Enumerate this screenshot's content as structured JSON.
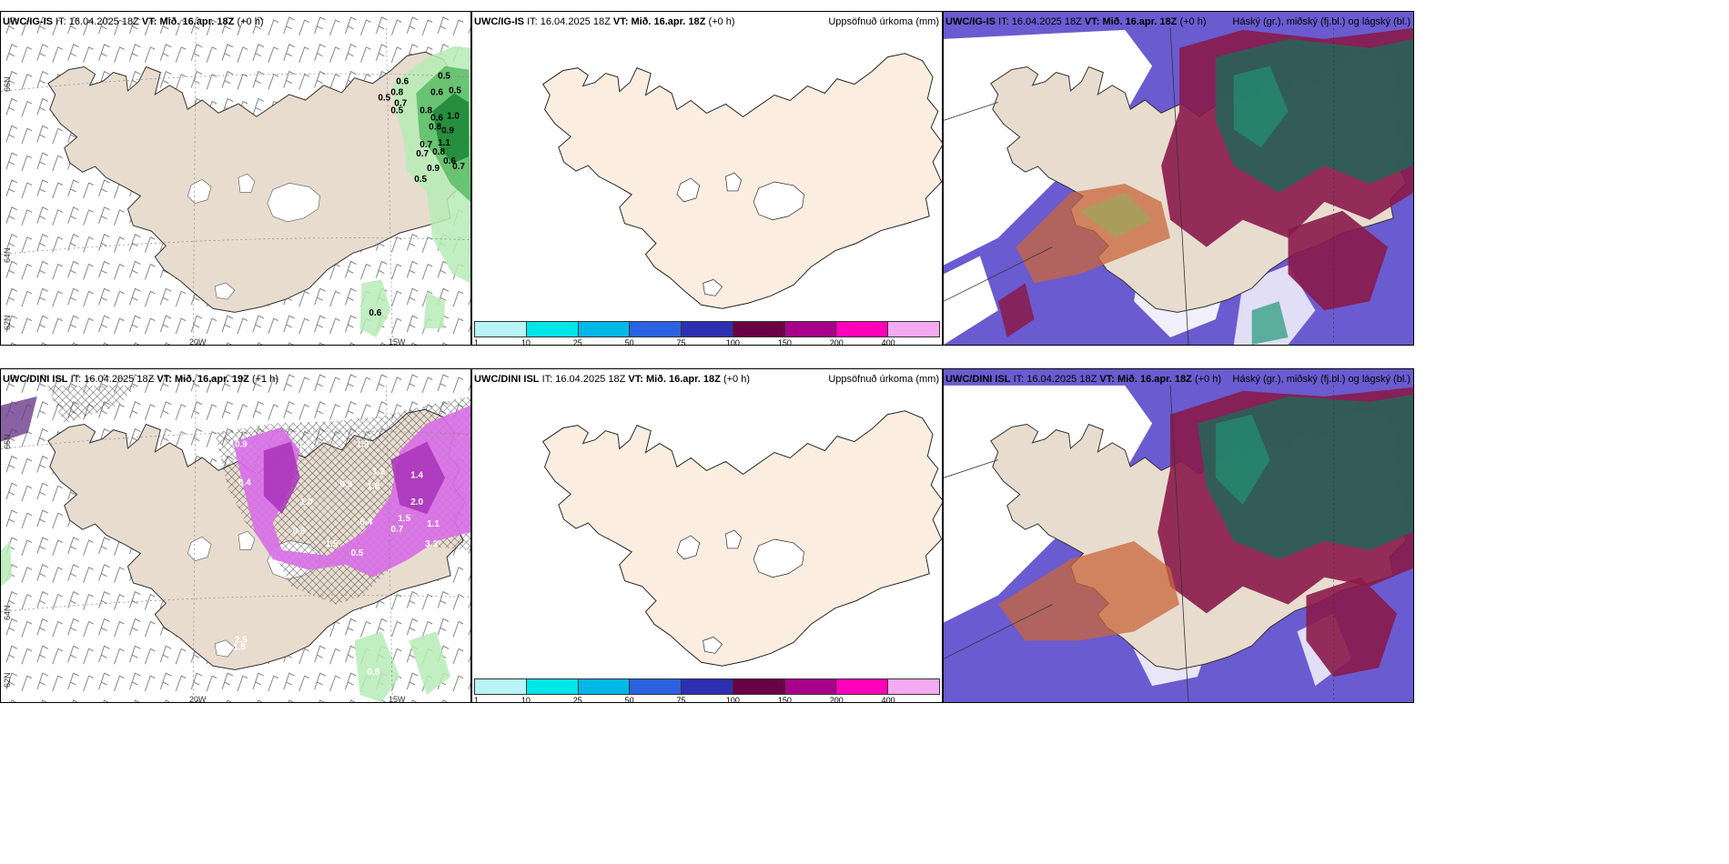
{
  "panels": {
    "p1": {
      "model": "UWC/IG-IS",
      "it_label": "IT:",
      "it": "16.04.2025 18Z",
      "vt_label": "VT:",
      "vt": "Mið. 16.apr. 18Z",
      "lead": "(+0 h)",
      "lat_labels": [
        "66N",
        "64N",
        "62N"
      ],
      "lon_labels": [
        "20W",
        "15W"
      ],
      "values": [
        "0.6",
        "0.5",
        "0.5",
        "0.8",
        "0.6",
        "0.5",
        "0.7",
        "0.5",
        "0.8",
        "0.6",
        "1.0",
        "0.8",
        "0.9",
        "1.1",
        "0.7",
        "0.7",
        "0.8",
        "0.6",
        "0.7",
        "0.9",
        "0.5",
        "0.6"
      ]
    },
    "p2": {
      "model": "UWC/IG-IS",
      "it_label": "IT:",
      "it": "16.04.2025 18Z",
      "vt_label": "VT:",
      "vt": "Mið. 16.apr. 18Z",
      "lead": "(+0 h)",
      "right": "Uppsöfnuð úrkoma (mm)"
    },
    "p3": {
      "model": "UWC/IG-IS",
      "it_label": "IT:",
      "it": "16.04.2025 18Z",
      "vt_label": "VT:",
      "vt": "Mið. 16.apr. 18Z",
      "lead": "(+0 h)",
      "right": "Háský (gr.), miðský (fj.bl.) og lágský (bl.)"
    },
    "p4": {
      "model": "UWC/DINI ISL",
      "it_label": "IT:",
      "it": "16.04.2025 18Z",
      "vt_label": "VT:",
      "vt": "Mið. 16.apr. 19Z",
      "lead": "(+1 h)",
      "lat_labels": [
        "66N",
        "64N",
        "62N"
      ],
      "lon_labels": [
        "20W",
        "15W"
      ],
      "values": [
        "0.9",
        "1.7",
        "1.9",
        "1.2",
        "0.4",
        "1.0",
        "0.6",
        "1.5",
        "0.9",
        "1.8",
        "2.0",
        "1.5",
        "0.7",
        "1.1",
        "3.3",
        "0.5",
        "0.4",
        "1.4",
        "2.5",
        "1.8",
        "0.8"
      ]
    },
    "p5": {
      "model": "UWC/DINI ISL",
      "it_label": "IT:",
      "it": "16.04.2025 18Z",
      "vt_label": "VT:",
      "vt": "Mið. 16.apr. 18Z",
      "lead": "(+0 h)",
      "right": "Uppsöfnuð úrkoma (mm)"
    },
    "p6": {
      "model": "UWC/DINI ISL",
      "it_label": "IT:",
      "it": "16.04.2025 18Z",
      "vt_label": "VT:",
      "vt": "Mið. 16.apr. 18Z",
      "lead": "(+0 h)",
      "right": "Háský (gr.), miðský (fj.bl.) og lágský (bl.)"
    }
  },
  "colorbar": {
    "ticks": [
      "1",
      "10",
      "25",
      "50",
      "75",
      "100",
      "150",
      "200",
      "400"
    ],
    "colors": [
      "#b8f4f6",
      "#00e5e8",
      "#00b8e8",
      "#2a62e0",
      "#2d2fb0",
      "#6a0045",
      "#a8008a",
      "#ff00bb",
      "#f4aaf0"
    ]
  }
}
